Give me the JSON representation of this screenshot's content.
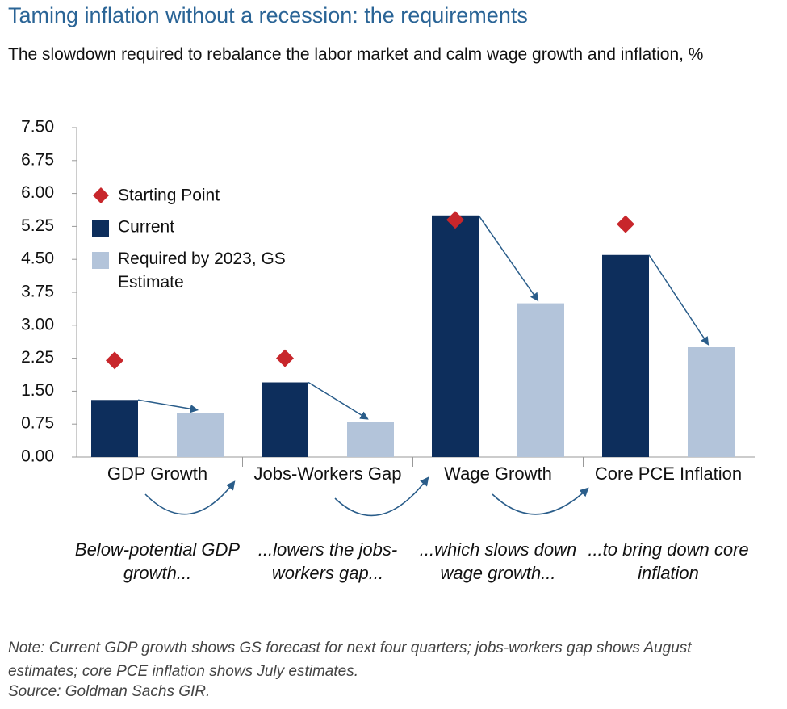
{
  "chart_data": {
    "type": "bar",
    "title": "Taming inflation without a recession: the requirements",
    "subtitle": "The slowdown required to rebalance the labor market and calm wage growth and inflation, %",
    "categories": [
      "GDP Growth",
      "Jobs-Workers Gap",
      "Wage Growth",
      "Core PCE Inflation"
    ],
    "series": [
      {
        "name": "Starting Point",
        "color": "#c8262b",
        "marker": "diamond",
        "values": [
          2.2,
          2.25,
          5.4,
          5.3
        ]
      },
      {
        "name": "Current",
        "color": "#0d2e5c",
        "values": [
          1.3,
          1.7,
          5.5,
          4.6
        ]
      },
      {
        "name": "Required by 2023, GS Estimate",
        "color": "#b3c4da",
        "values": [
          1.0,
          0.8,
          3.5,
          2.5
        ]
      }
    ],
    "ylim": [
      0,
      7.5
    ],
    "yticks": [
      {
        "value": 0,
        "label": "0.00"
      },
      {
        "value": 0.75,
        "label": "0.75"
      },
      {
        "value": 1.5,
        "label": "1.50"
      },
      {
        "value": 2.25,
        "label": "2.25"
      },
      {
        "value": 3,
        "label": "3.00"
      },
      {
        "value": 3.75,
        "label": "3.75"
      },
      {
        "value": 4.5,
        "label": "4.50"
      },
      {
        "value": 5.25,
        "label": "5.25"
      },
      {
        "value": 6,
        "label": "6.00"
      },
      {
        "value": 6.75,
        "label": "6.75"
      },
      {
        "value": 7.5,
        "label": "7.50"
      }
    ],
    "captions": [
      "Below-potential GDP growth...",
      "...lowers the jobs-workers gap...",
      "...which slows down wage growth...",
      "...to bring down core inflation"
    ],
    "note": "Note: Current GDP growth shows GS forecast for next four quarters; jobs-workers gap shows August estimates; core PCE inflation shows July estimates.",
    "source": "Source: Goldman Sachs GIR."
  }
}
